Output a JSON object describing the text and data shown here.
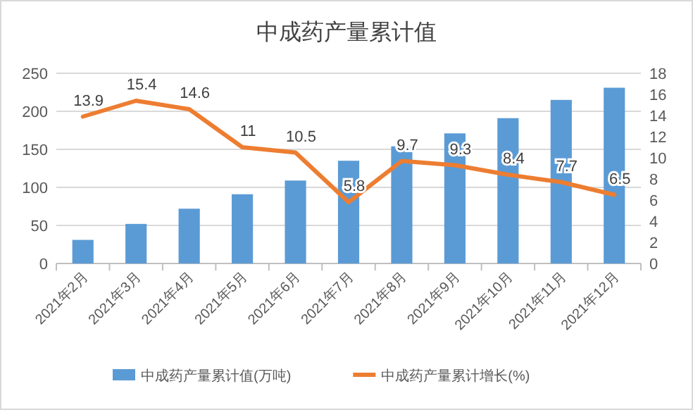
{
  "chart_data": {
    "type": "bar",
    "title": "中成药产量累计值",
    "categories": [
      "2021年2月",
      "2021年3月",
      "2021年4月",
      "2021年5月",
      "2021年6月",
      "2021年7月",
      "2021年8月",
      "2021年9月",
      "2021年10月",
      "2021年11月",
      "2021年12月"
    ],
    "series": [
      {
        "name": "中成药产量累计值(万吨)",
        "color": "#5b9bd5",
        "values": [
          31,
          52,
          72,
          91,
          109,
          135,
          154,
          171,
          191,
          215,
          231
        ]
      },
      {
        "name": "中成药产量累计增长(%)",
        "type": "line",
        "axis": "y2",
        "color": "#ed7d31",
        "values": [
          13.9,
          15.4,
          14.6,
          11,
          10.5,
          5.8,
          9.7,
          9.3,
          8.4,
          7.7,
          6.5
        ],
        "data_labels": true
      }
    ],
    "ylim": [
      0,
      250
    ],
    "yticks": [
      0,
      50,
      100,
      150,
      200,
      250
    ],
    "y2lim": [
      0,
      18
    ],
    "y2ticks": [
      0,
      2,
      4,
      6,
      8,
      10,
      12,
      14,
      16,
      18
    ],
    "grid": "y",
    "legend": "bottom",
    "marker": "none"
  }
}
